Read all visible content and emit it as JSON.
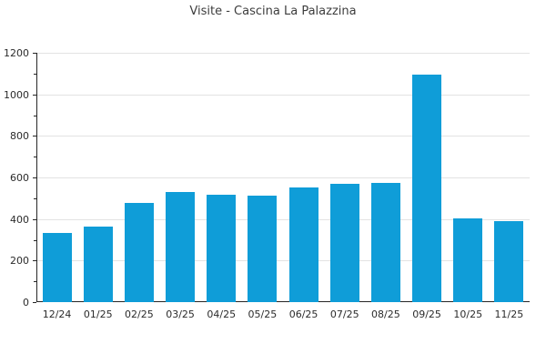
{
  "title": "Visite - Cascina La Palazzina",
  "colors": {
    "bar": "#0f9dd8",
    "grid": "#e3e3e3",
    "axis": "#262626",
    "title_text": "#3d3d3d",
    "tick_text": "#2b2b2b",
    "background": "#ffffff"
  },
  "chart_data": {
    "type": "bar",
    "title": "Visite - Cascina La Palazzina",
    "categories": [
      "12/24",
      "01/25",
      "02/25",
      "03/25",
      "04/25",
      "05/25",
      "06/25",
      "07/25",
      "08/25",
      "09/25",
      "10/25",
      "11/25"
    ],
    "values": [
      335,
      364,
      477,
      532,
      517,
      511,
      554,
      570,
      574,
      1093,
      405,
      390
    ],
    "xlabel": "",
    "ylabel": "",
    "ylim": [
      0,
      1200
    ],
    "ytick_step": 200,
    "ytick_labels": [
      "0",
      "200",
      "400",
      "600",
      "800",
      "1000",
      "1200"
    ],
    "y_minor_tick_step": 100,
    "grid": true,
    "legend_position": "none",
    "bar_color": "#0f9dd8"
  }
}
